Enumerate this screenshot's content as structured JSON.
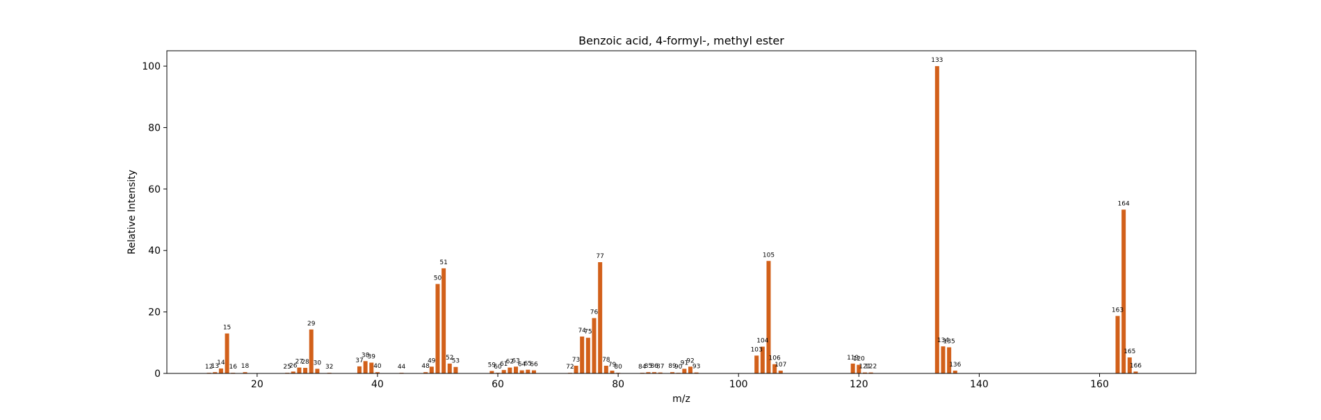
{
  "chart_data": {
    "type": "bar",
    "title": "Benzoic acid, 4-formyl-, methyl ester",
    "xlabel": "m/z",
    "ylabel": "Relative Intensity",
    "xlim": [
      5,
      176
    ],
    "ylim": [
      0,
      105
    ],
    "x_ticks": [
      20,
      40,
      60,
      80,
      100,
      120,
      140,
      160
    ],
    "y_ticks": [
      0,
      20,
      40,
      60,
      80,
      100
    ],
    "grid": false,
    "bar_color": "#d2601a",
    "points": [
      {
        "x": 12,
        "y": 0.2
      },
      {
        "x": 13,
        "y": 0.4
      },
      {
        "x": 14,
        "y": 1.6
      },
      {
        "x": 15,
        "y": 13.0
      },
      {
        "x": 16,
        "y": 0.2
      },
      {
        "x": 18,
        "y": 0.4
      },
      {
        "x": 25,
        "y": 0.2
      },
      {
        "x": 26,
        "y": 0.6
      },
      {
        "x": 27,
        "y": 1.9
      },
      {
        "x": 28,
        "y": 1.8
      },
      {
        "x": 29,
        "y": 14.3
      },
      {
        "x": 30,
        "y": 1.5
      },
      {
        "x": 32,
        "y": 0.2
      },
      {
        "x": 37,
        "y": 2.3
      },
      {
        "x": 38,
        "y": 4.0
      },
      {
        "x": 39,
        "y": 3.5
      },
      {
        "x": 40,
        "y": 0.4
      },
      {
        "x": 44,
        "y": 0.2
      },
      {
        "x": 48,
        "y": 0.4
      },
      {
        "x": 49,
        "y": 2.2
      },
      {
        "x": 50,
        "y": 29.1
      },
      {
        "x": 51,
        "y": 34.2
      },
      {
        "x": 52,
        "y": 3.2
      },
      {
        "x": 53,
        "y": 2.1
      },
      {
        "x": 59,
        "y": 0.8
      },
      {
        "x": 60,
        "y": 0.2
      },
      {
        "x": 61,
        "y": 1.1
      },
      {
        "x": 62,
        "y": 1.9
      },
      {
        "x": 63,
        "y": 2.2
      },
      {
        "x": 64,
        "y": 1.0
      },
      {
        "x": 65,
        "y": 1.2
      },
      {
        "x": 66,
        "y": 1.0
      },
      {
        "x": 72,
        "y": 0.2
      },
      {
        "x": 73,
        "y": 2.5
      },
      {
        "x": 74,
        "y": 12.0
      },
      {
        "x": 75,
        "y": 11.6
      },
      {
        "x": 76,
        "y": 18.0
      },
      {
        "x": 77,
        "y": 36.2
      },
      {
        "x": 78,
        "y": 2.5
      },
      {
        "x": 79,
        "y": 0.9
      },
      {
        "x": 80,
        "y": 0.2
      },
      {
        "x": 84,
        "y": 0.2
      },
      {
        "x": 85,
        "y": 0.4
      },
      {
        "x": 86,
        "y": 0.4
      },
      {
        "x": 87,
        "y": 0.3
      },
      {
        "x": 89,
        "y": 0.4
      },
      {
        "x": 90,
        "y": 0.2
      },
      {
        "x": 91,
        "y": 1.5
      },
      {
        "x": 92,
        "y": 2.2
      },
      {
        "x": 93,
        "y": 0.3
      },
      {
        "x": 103,
        "y": 5.8
      },
      {
        "x": 104,
        "y": 8.7
      },
      {
        "x": 105,
        "y": 36.6
      },
      {
        "x": 106,
        "y": 3.0
      },
      {
        "x": 107,
        "y": 0.9
      },
      {
        "x": 119,
        "y": 3.2
      },
      {
        "x": 120,
        "y": 2.8
      },
      {
        "x": 121,
        "y": 0.3
      },
      {
        "x": 122,
        "y": 0.3
      },
      {
        "x": 133,
        "y": 100.0
      },
      {
        "x": 134,
        "y": 8.8
      },
      {
        "x": 135,
        "y": 8.5
      },
      {
        "x": 136,
        "y": 0.9
      },
      {
        "x": 163,
        "y": 18.7
      },
      {
        "x": 164,
        "y": 53.3
      },
      {
        "x": 165,
        "y": 5.2
      },
      {
        "x": 166,
        "y": 0.6
      }
    ]
  }
}
